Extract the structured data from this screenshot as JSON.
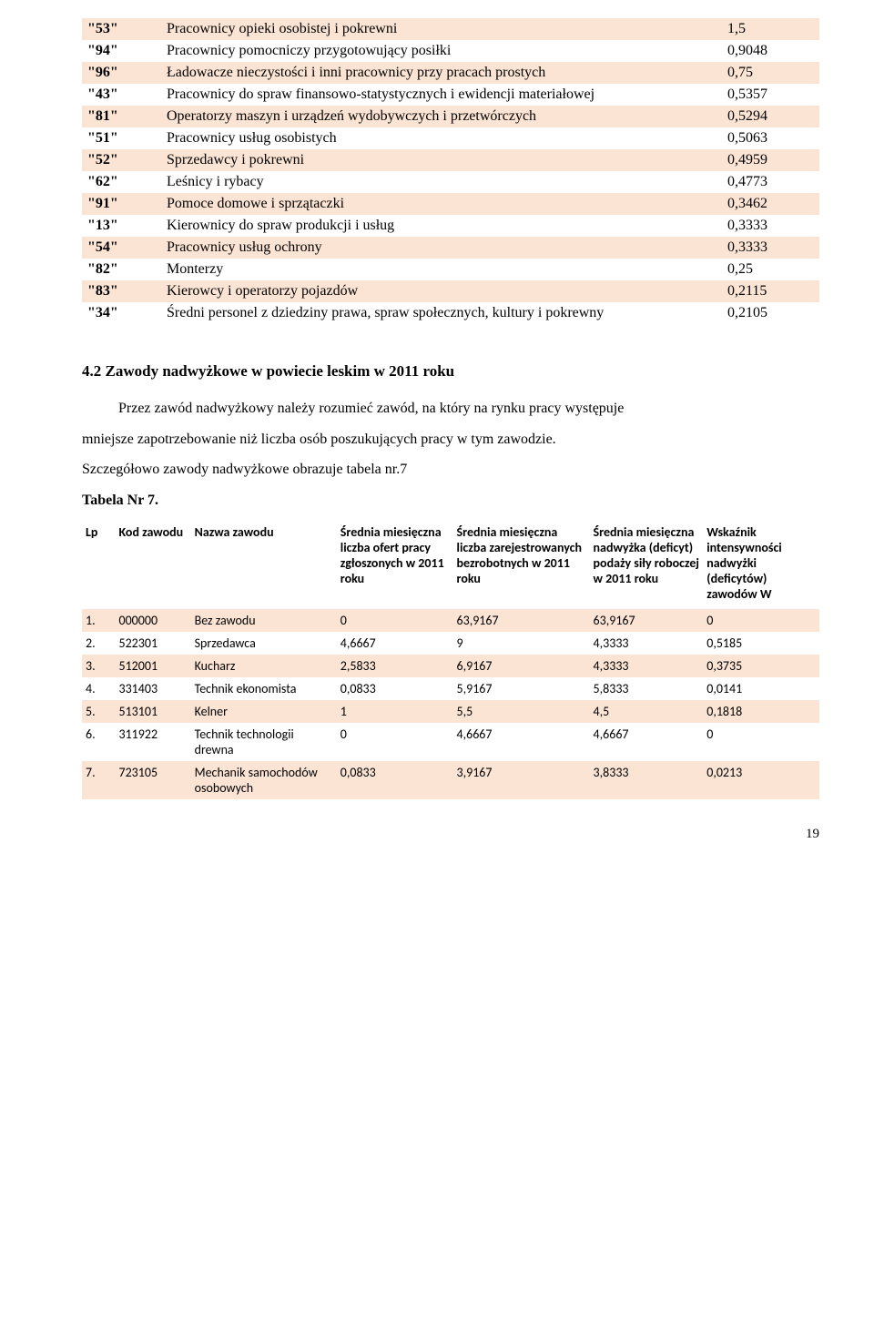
{
  "colors": {
    "row_alt_bg": "#fbe4d4",
    "text": "#000000",
    "background": "#ffffff"
  },
  "typography": {
    "serif_family": "Times New Roman",
    "sans_family": "Calibri",
    "body_fontsize": 16,
    "table2_fontsize": 14
  },
  "table1": {
    "type": "table",
    "rows": [
      {
        "code": "\"53\"",
        "name": "Pracownicy opieki osobistej i pokrewni",
        "val": "1,5",
        "alt": true
      },
      {
        "code": "\"94\"",
        "name": "Pracownicy pomocniczy przygotowujący posiłki",
        "val": "0,9048",
        "alt": false
      },
      {
        "code": "\"96\"",
        "name": "Ładowacze nieczystości i inni pracownicy przy pracach prostych",
        "val": "0,75",
        "alt": true
      },
      {
        "code": "\"43\"",
        "name": "Pracownicy do spraw finansowo-statystycznych i ewidencji materiałowej",
        "val": "0,5357",
        "alt": false
      },
      {
        "code": "\"81\"",
        "name": "Operatorzy maszyn i urządzeń wydobywczych i przetwórczych",
        "val": "0,5294",
        "alt": true
      },
      {
        "code": "\"51\"",
        "name": "Pracownicy usług osobistych",
        "val": "0,5063",
        "alt": false
      },
      {
        "code": "\"52\"",
        "name": "Sprzedawcy i pokrewni",
        "val": "0,4959",
        "alt": true
      },
      {
        "code": "\"62\"",
        "name": "Leśnicy i rybacy",
        "val": "0,4773",
        "alt": false
      },
      {
        "code": "\"91\"",
        "name": "Pomoce domowe i sprzątaczki",
        "val": "0,3462",
        "alt": true
      },
      {
        "code": "\"13\"",
        "name": "Kierownicy do spraw produkcji i usług",
        "val": "0,3333",
        "alt": false
      },
      {
        "code": "\"54\"",
        "name": "Pracownicy usług ochrony",
        "val": "0,3333",
        "alt": true
      },
      {
        "code": "\"82\"",
        "name": "Monterzy",
        "val": "0,25",
        "alt": false
      },
      {
        "code": "\"83\"",
        "name": "Kierowcy i operatorzy pojazdów",
        "val": "0,2115",
        "alt": true
      },
      {
        "code": "\"34\"",
        "name": "Średni personel z dziedziny prawa, spraw społecznych, kultury i pokrewny",
        "val": "0,2105",
        "alt": false
      }
    ]
  },
  "section": {
    "heading": "4.2  Zawody nadwyżkowe w powiecie leskim w 2011 roku",
    "p1": "Przez zawód nadwyżkowy należy rozumieć zawód, na który na rynku pracy występuje",
    "p2": "mniejsze zapotrzebowanie niż liczba osób poszukujących pracy w tym zawodzie.",
    "p3": "Szczegółowo zawody nadwyżkowe obrazuje tabela nr.7",
    "p4": "Tabela Nr 7."
  },
  "table2": {
    "type": "table",
    "columns": [
      "Lp",
      "Kod zawodu",
      "Nazwa zawodu",
      "Średnia miesięczna liczba ofert pracy zgłoszonych w 2011 roku",
      "Średnia miesięczna liczba zarejestrowanych bezrobotnych w 2011 roku",
      "Średnia miesięczna nadwyżka (deficyt) podaży siły roboczej w 2011 roku",
      "Wskaźnik intensywności nadwyżki (deficytów) zawodów W"
    ],
    "rows": [
      {
        "lp": "1.",
        "kod": "000000",
        "nazwa": "Bez zawodu",
        "c1": "0",
        "c2": "63,9167",
        "c3": "63,9167",
        "c4": "0",
        "alt": true
      },
      {
        "lp": "2.",
        "kod": "522301",
        "nazwa": "Sprzedawca",
        "c1": "4,6667",
        "c2": "9",
        "c3": "4,3333",
        "c4": "0,5185",
        "alt": false
      },
      {
        "lp": "3.",
        "kod": "512001",
        "nazwa": "Kucharz",
        "c1": "2,5833",
        "c2": "6,9167",
        "c3": "4,3333",
        "c4": "0,3735",
        "alt": true
      },
      {
        "lp": "4.",
        "kod": "331403",
        "nazwa": "Technik ekonomista",
        "c1": "0,0833",
        "c2": "5,9167",
        "c3": "5,8333",
        "c4": "0,0141",
        "alt": false
      },
      {
        "lp": "5.",
        "kod": "513101",
        "nazwa": "Kelner",
        "c1": "1",
        "c2": "5,5",
        "c3": "4,5",
        "c4": "0,1818",
        "alt": true
      },
      {
        "lp": "6.",
        "kod": "311922",
        "nazwa": "Technik technologii drewna",
        "c1": "0",
        "c2": "4,6667",
        "c3": "4,6667",
        "c4": "0",
        "alt": false
      },
      {
        "lp": "7.",
        "kod": "723105",
        "nazwa": "Mechanik samochodów osobowych",
        "c1": "0,0833",
        "c2": "3,9167",
        "c3": "3,8333",
        "c4": "0,0213",
        "alt": true
      }
    ]
  },
  "page_number": "19"
}
